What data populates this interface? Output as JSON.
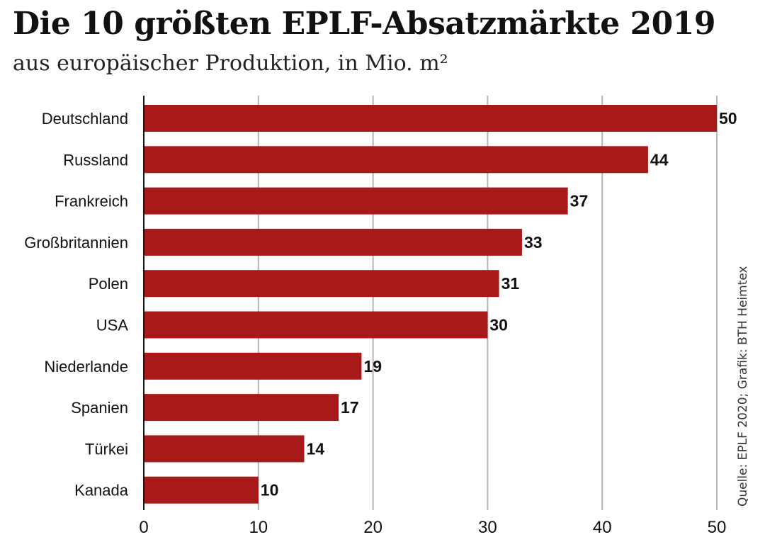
{
  "chart_data": {
    "type": "bar",
    "orientation": "horizontal",
    "title": "Die 10 größten EPLF-Absatzmärkte 2019",
    "subtitle": "aus europäischer Produktion, in Mio. m²",
    "categories": [
      "Deutschland",
      "Russland",
      "Frankreich",
      "Großbritannien",
      "Polen",
      "USA",
      "Niederlande",
      "Spanien",
      "Türkei",
      "Kanada"
    ],
    "values": [
      50,
      44,
      37,
      33,
      31,
      30,
      19,
      17,
      14,
      10
    ],
    "xlim": [
      0,
      50
    ],
    "xticks": [
      0,
      10,
      20,
      30,
      40,
      50
    ],
    "grid": true,
    "bar_color": "#a8191a",
    "source": "Quelle: EPLF 2020; Grafik: BTH Heimtex"
  }
}
